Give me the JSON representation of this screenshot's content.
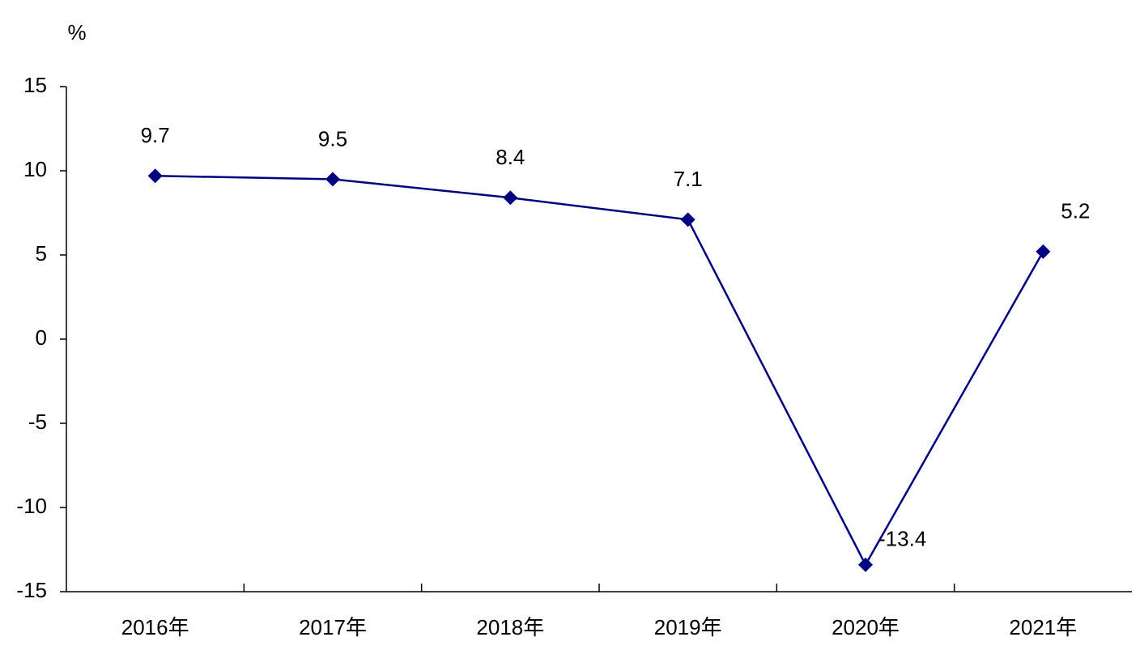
{
  "chart_data": {
    "type": "line",
    "y_unit": "%",
    "categories": [
      "2016年",
      "2017年",
      "2018年",
      "2019年",
      "2020年",
      "2021年"
    ],
    "series": [
      {
        "color": "#000080",
        "values": [
          9.7,
          9.5,
          8.4,
          7.1,
          -13.4,
          5.2
        ]
      }
    ],
    "ylim": [
      -15,
      15
    ],
    "yticks": [
      -15,
      -10,
      -5,
      0,
      5,
      10,
      15
    ],
    "grid": false
  }
}
